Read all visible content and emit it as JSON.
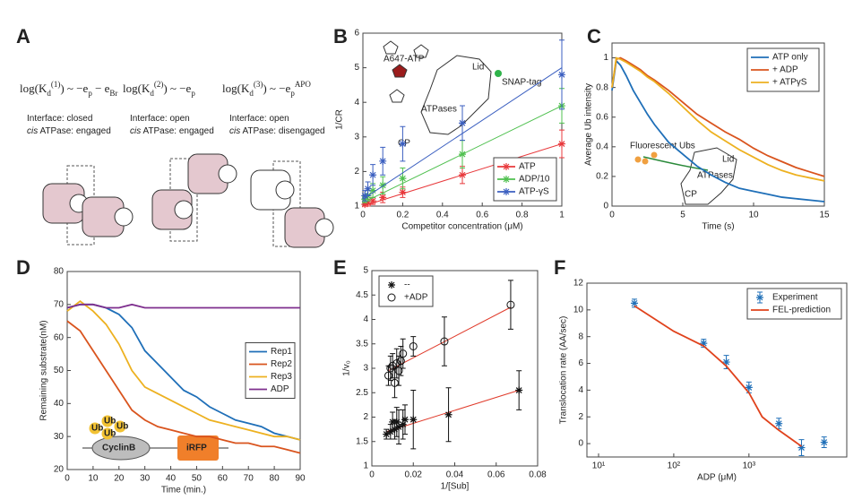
{
  "panel_a": {
    "label": "A",
    "columns": [
      {
        "formula": [
          {
            "text": "log(K"
          },
          {
            "text": "d",
            "sub": true
          },
          {
            "text": "(1)",
            "sup": true
          },
          {
            "text": ") ~ −e"
          },
          {
            "text": "p",
            "sub": true
          },
          {
            "text": " − e"
          },
          {
            "text": "Br",
            "sub": true
          }
        ],
        "caption": [
          [
            {
              "text": "Interface: closed"
            }
          ],
          [
            {
              "text": "cis",
              "italic": true
            },
            {
              "text": " ATPase: engaged"
            }
          ]
        ]
      },
      {
        "formula": [
          {
            "text": "log(K"
          },
          {
            "text": "d",
            "sub": true
          },
          {
            "text": "(2)",
            "sup": true
          },
          {
            "text": ") ~ −e"
          },
          {
            "text": "p",
            "sub": true
          }
        ],
        "caption": [
          [
            {
              "text": "Interface: open"
            }
          ],
          [
            {
              "text": "cis",
              "italic": true
            },
            {
              "text": " ATPase: engaged"
            }
          ]
        ]
      },
      {
        "formula": [
          {
            "text": "log(K"
          },
          {
            "text": "d",
            "sub": true
          },
          {
            "text": "(3)",
            "sup": true
          },
          {
            "text": ") ~ −e"
          },
          {
            "text": "p",
            "sub": true
          },
          {
            "text": "APO",
            "sup": true
          }
        ],
        "caption": [
          [
            {
              "text": "Interface: open"
            }
          ],
          [
            {
              "text": "cis",
              "italic": true
            },
            {
              "text": " ATPase: disengaged"
            }
          ]
        ]
      }
    ]
  },
  "chart_data": [
    {
      "panel": "B",
      "type": "scatter",
      "xlabel": "Competitor concentration (μM)",
      "ylabel": "1/CR",
      "xlim": [
        0,
        1
      ],
      "ylim": [
        1,
        6
      ],
      "xticks": [
        0,
        0.2,
        0.4,
        0.6,
        0.8,
        1
      ],
      "yticks": [
        1,
        2,
        3,
        4,
        5,
        6
      ],
      "legend": "lower right",
      "annotations": [
        "A647-ATP",
        "Lid",
        "SNAP-tag",
        "ATPases",
        "CP"
      ],
      "series": [
        {
          "name": "ATP",
          "color": "#e8393c",
          "marker": "asterisk",
          "x": [
            0.01,
            0.025,
            0.05,
            0.1,
            0.2,
            0.5,
            1
          ],
          "values": [
            1.05,
            1.1,
            1.15,
            1.25,
            1.4,
            1.9,
            2.8
          ],
          "errors": [
            0.05,
            0.1,
            0.1,
            0.15,
            0.15,
            0.25,
            0.4
          ],
          "fit_x": [
            0,
            1
          ],
          "fit": [
            1,
            2.8
          ]
        },
        {
          "name": "ADP/10",
          "color": "#4fc04f",
          "marker": "asterisk",
          "x": [
            0.01,
            0.025,
            0.05,
            0.1,
            0.2,
            0.5,
            1
          ],
          "values": [
            1.2,
            1.3,
            1.45,
            1.6,
            1.8,
            2.5,
            3.9
          ],
          "errors": [
            0.1,
            0.15,
            0.2,
            0.25,
            0.3,
            0.4,
            0.5
          ],
          "fit_x": [
            0,
            1
          ],
          "fit": [
            1.1,
            3.9
          ]
        },
        {
          "name": "ATP-γS",
          "color": "#3b5fc0",
          "marker": "asterisk",
          "x": [
            0.01,
            0.025,
            0.05,
            0.1,
            0.2,
            0.5,
            1
          ],
          "values": [
            1.3,
            1.5,
            1.9,
            2.3,
            2.8,
            3.4,
            4.8
          ],
          "errors": [
            0.15,
            0.2,
            0.3,
            0.4,
            0.5,
            0.5,
            1
          ],
          "fit_x": [
            0,
            1
          ],
          "fit": [
            1.2,
            5
          ]
        }
      ]
    },
    {
      "panel": "C",
      "type": "line",
      "xlabel": "Time (s)",
      "ylabel": "Average Ub intensity",
      "xlim": [
        0,
        15
      ],
      "ylim": [
        0,
        1.1
      ],
      "xticks": [
        0,
        5,
        10,
        15
      ],
      "yticks": [
        0,
        0.2,
        0.4,
        0.6,
        0.8,
        1
      ],
      "legend": "upper right",
      "annotations": [
        "Fluorescent Ubs",
        "Lid",
        "ATPases",
        "CP"
      ],
      "x": [
        0,
        0.3,
        0.6,
        1,
        1.5,
        2,
        2.5,
        3,
        4,
        5,
        6,
        7,
        8,
        9,
        10,
        11,
        12,
        13,
        14,
        15
      ],
      "series": [
        {
          "name": "ATP only",
          "color": "#1f6fb8",
          "values": [
            0.78,
            0.98,
            0.95,
            0.88,
            0.78,
            0.7,
            0.62,
            0.55,
            0.43,
            0.35,
            0.27,
            0.21,
            0.16,
            0.12,
            0.1,
            0.08,
            0.06,
            0.05,
            0.04,
            0.03
          ]
        },
        {
          "name": "+ ADP",
          "color": "#d9541e",
          "values": [
            0.8,
            0.99,
            1.0,
            0.98,
            0.95,
            0.92,
            0.88,
            0.85,
            0.78,
            0.7,
            0.62,
            0.56,
            0.5,
            0.45,
            0.39,
            0.34,
            0.3,
            0.26,
            0.23,
            0.2
          ]
        },
        {
          "name": "+ ATPγS",
          "color": "#edb120",
          "values": [
            0.8,
            1.0,
            0.99,
            0.97,
            0.94,
            0.91,
            0.87,
            0.84,
            0.76,
            0.67,
            0.58,
            0.5,
            0.44,
            0.38,
            0.33,
            0.28,
            0.24,
            0.21,
            0.19,
            0.17
          ]
        }
      ]
    },
    {
      "panel": "D",
      "type": "line",
      "xlabel": "Time (min.)",
      "ylabel": "Remaining substrate(nM)",
      "xlim": [
        0,
        90
      ],
      "ylim": [
        20,
        80
      ],
      "xticks": [
        0,
        10,
        20,
        30,
        40,
        50,
        60,
        70,
        80,
        90
      ],
      "yticks": [
        20,
        30,
        40,
        50,
        60,
        70,
        80
      ],
      "legend": "center right",
      "annotations": [
        "Ub",
        "Ub",
        "Ub",
        "Ub",
        "CyclinB",
        "iRFP"
      ],
      "x": [
        0,
        5,
        10,
        15,
        20,
        25,
        30,
        35,
        40,
        45,
        50,
        55,
        60,
        65,
        70,
        75,
        80,
        85,
        90
      ],
      "series": [
        {
          "name": "Rep1",
          "color": "#1f6fb8",
          "values": [
            69,
            70,
            70,
            69,
            67,
            63,
            56,
            52,
            48,
            44,
            42,
            39,
            37,
            35,
            34,
            33,
            31,
            30,
            29
          ]
        },
        {
          "name": "Rep2",
          "color": "#d9541e",
          "values": [
            65,
            62,
            56,
            50,
            44,
            38,
            35,
            33,
            32,
            31,
            30,
            30,
            29,
            28,
            28,
            27,
            27,
            26,
            25
          ]
        },
        {
          "name": "Rep3",
          "color": "#edb120",
          "values": [
            68,
            71,
            68,
            64,
            58,
            50,
            45,
            43,
            41,
            39,
            37,
            35,
            34,
            33,
            32,
            31,
            30,
            30,
            29
          ]
        },
        {
          "name": "ADP",
          "color": "#7e2f8e",
          "values": [
            69,
            70,
            70,
            69,
            69,
            70,
            69,
            69,
            69,
            69,
            69,
            69,
            69,
            69,
            69,
            69,
            69,
            69,
            69
          ]
        }
      ]
    },
    {
      "panel": "E",
      "type": "scatter",
      "xlabel": "1/[Sub]",
      "ylabel": "1/v₀",
      "xlim": [
        0,
        0.08
      ],
      "ylim": [
        1,
        5
      ],
      "xticks": [
        0,
        0.02,
        0.04,
        0.06,
        0.08
      ],
      "yticks": [
        1,
        1.5,
        2,
        2.5,
        3,
        3.5,
        4,
        4.5,
        5
      ],
      "legend": "upper left",
      "series": [
        {
          "name": "--",
          "color": "#111111",
          "marker": "asterisk",
          "x": [
            0.007,
            0.009,
            0.01,
            0.011,
            0.012,
            0.013,
            0.015,
            0.016,
            0.02,
            0.037,
            0.071
          ],
          "values": [
            1.65,
            1.7,
            1.9,
            1.75,
            1.9,
            1.8,
            1.85,
            1.95,
            1.95,
            2.05,
            2.55
          ],
          "errors": [
            0.1,
            0.15,
            0.2,
            0.2,
            0.3,
            0.35,
            0.3,
            0.3,
            0.6,
            0.55,
            0.4
          ],
          "fit_x": [
            0.007,
            0.071
          ],
          "fit": [
            1.7,
            2.55
          ]
        },
        {
          "name": "+ADP",
          "color": "#111111",
          "marker": "circle",
          "x": [
            0.008,
            0.009,
            0.01,
            0.011,
            0.012,
            0.013,
            0.014,
            0.015,
            0.02,
            0.035,
            0.067
          ],
          "values": [
            2.85,
            3.0,
            3.05,
            2.7,
            3.1,
            2.95,
            3.15,
            3.3,
            3.45,
            3.55,
            4.3
          ],
          "errors": [
            0.2,
            0.25,
            0.25,
            0.3,
            0.3,
            0.3,
            0.3,
            0.3,
            0.2,
            0.5,
            0.5
          ],
          "fit_x": [
            0.008,
            0.067
          ],
          "fit": [
            2.95,
            4.25
          ]
        }
      ]
    },
    {
      "panel": "F",
      "type": "scatter",
      "xlabel": "ADP (μM)",
      "ylabel": "Translocation rate (AA/sec)",
      "xlog": true,
      "xlim": [
        7,
        20000
      ],
      "ylim": [
        -1,
        12
      ],
      "xticks": [
        {
          "value": 10,
          "label": "10¹"
        },
        {
          "value": 100,
          "label": "10²"
        },
        {
          "value": 1000,
          "label": "10³"
        }
      ],
      "yticks": [
        0,
        2,
        4,
        6,
        8,
        10,
        12
      ],
      "legend": "upper right",
      "series": [
        {
          "name": "Experiment",
          "color": "#1f6fb8",
          "marker": "asterisk",
          "x": [
            30,
            250,
            500,
            1000,
            2500,
            5000,
            10000
          ],
          "values": [
            10.5,
            7.5,
            6.1,
            4.2,
            1.5,
            -0.3,
            0.1
          ],
          "errors": [
            0.3,
            0.3,
            0.5,
            0.4,
            0.4,
            0.6,
            0.4
          ]
        },
        {
          "name": "FEL-prediction",
          "color": "#e0421c",
          "type": "line",
          "x": [
            30,
            100,
            250,
            500,
            1000,
            1500,
            2500,
            5000
          ],
          "values": [
            10.3,
            8.4,
            7.3,
            5.8,
            3.8,
            2.0,
            1.0,
            -0.2
          ]
        }
      ]
    }
  ]
}
